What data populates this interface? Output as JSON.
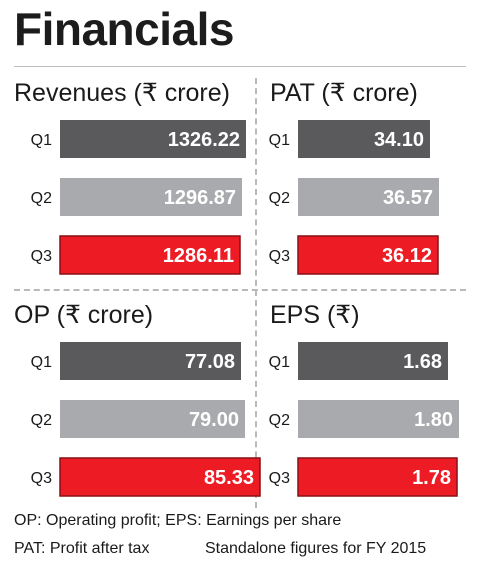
{
  "title": "Financials",
  "colors": {
    "q1": "#5a5a5c",
    "q2": "#a9aaad",
    "q3": "#ed1c24",
    "q3_border": "#8a0f14"
  },
  "chart_data": [
    {
      "type": "bar",
      "title": "Revenues (₹ crore)",
      "categories": [
        "Q1",
        "Q2",
        "Q3"
      ],
      "values": [
        1326.22,
        1296.87,
        1286.11
      ],
      "labels": [
        "1326.22",
        "1296.87",
        "1286.11"
      ]
    },
    {
      "type": "bar",
      "title": "PAT (₹ crore)",
      "categories": [
        "Q1",
        "Q2",
        "Q3"
      ],
      "values": [
        34.1,
        36.57,
        36.12
      ],
      "labels": [
        "34.10",
        "36.57",
        "36.12"
      ]
    },
    {
      "type": "bar",
      "title": "OP (₹ crore)",
      "categories": [
        "Q1",
        "Q2",
        "Q3"
      ],
      "values": [
        77.08,
        79.0,
        85.33
      ],
      "labels": [
        "77.08",
        "79.00",
        "85.33"
      ]
    },
    {
      "type": "bar",
      "title": "EPS (₹)",
      "categories": [
        "Q1",
        "Q2",
        "Q3"
      ],
      "values": [
        1.68,
        1.8,
        1.78
      ],
      "labels": [
        "1.68",
        "1.80",
        "1.78"
      ]
    }
  ],
  "footnotes": {
    "line1": "OP: Operating profit; EPS: Earnings per share",
    "line2_left": "PAT: Profit after tax",
    "line2_right": "Standalone figures for FY 2015"
  }
}
